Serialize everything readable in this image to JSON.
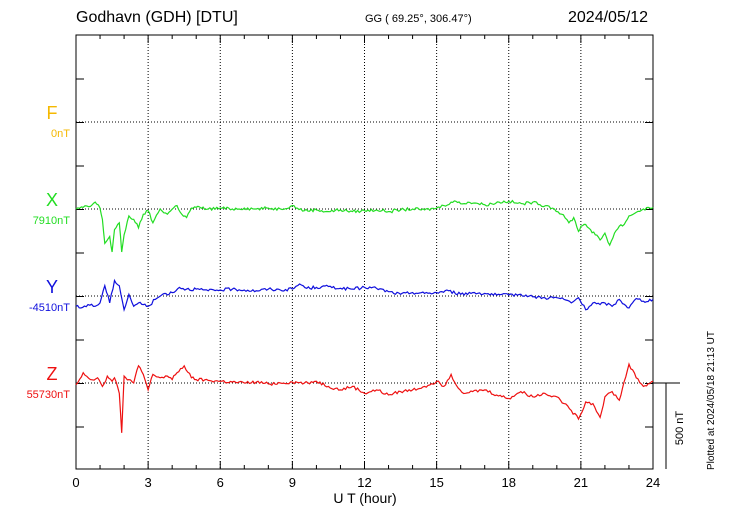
{
  "header": {
    "station": "Godhavn (GDH)  [DTU]",
    "coords": "GG ( 69.25°, 306.47°)",
    "date": "2024/05/12"
  },
  "footer": {
    "plotted": "Plotted at 2024/05/18 21:13 UT"
  },
  "chart_data": {
    "type": "line",
    "xlabel": "U T (hour)",
    "xlim": [
      0,
      24
    ],
    "xticks": [
      "0",
      "3",
      "6",
      "9",
      "12",
      "15",
      "18",
      "21",
      "24"
    ],
    "scale_bar": {
      "label": "500 nT",
      "value_nT": 500
    },
    "grid": true,
    "series": [
      {
        "name": "F",
        "baseline_label": "0nT",
        "color": "#f5b800",
        "offset_slot": 0,
        "x": [],
        "values": []
      },
      {
        "name": "X",
        "baseline_label": "7910nT",
        "color": "#22dd22",
        "offset_slot": 1,
        "x": [
          0,
          0.3,
          0.6,
          0.8,
          1.0,
          1.1,
          1.2,
          1.4,
          1.5,
          1.6,
          1.8,
          1.9,
          2.0,
          2.2,
          2.4,
          2.6,
          2.8,
          3.0,
          3.2,
          3.5,
          3.8,
          4.0,
          4.2,
          4.4,
          4.6,
          4.8,
          5.0,
          5.5,
          6.0,
          6.5,
          7.0,
          7.5,
          8.0,
          8.5,
          9.0,
          9.2,
          9.5,
          10.0,
          10.5,
          11.0,
          11.5,
          12.0,
          12.5,
          13.0,
          13.5,
          14.0,
          14.5,
          15.0,
          15.3,
          15.6,
          15.8,
          16.0,
          16.3,
          16.6,
          17.0,
          17.3,
          17.6,
          18.0,
          18.3,
          18.6,
          19.0,
          19.3,
          19.6,
          19.9,
          20.2,
          20.5,
          20.7,
          20.9,
          21.0,
          21.2,
          21.4,
          21.6,
          21.8,
          22.0,
          22.2,
          22.4,
          22.6,
          22.8,
          23.0,
          23.3,
          23.6,
          24.0
        ],
        "values": [
          0,
          10,
          15,
          40,
          5,
          -60,
          -200,
          -160,
          -250,
          -120,
          -80,
          -250,
          -150,
          -40,
          -60,
          -110,
          -30,
          -10,
          -80,
          0,
          -30,
          0,
          20,
          -30,
          -50,
          5,
          10,
          0,
          5,
          0,
          5,
          0,
          5,
          0,
          20,
          5,
          -10,
          -5,
          -15,
          -5,
          -15,
          -10,
          -5,
          -15,
          -5,
          0,
          -5,
          5,
          20,
          40,
          45,
          30,
          40,
          35,
          25,
          30,
          40,
          45,
          35,
          30,
          40,
          25,
          20,
          0,
          -30,
          -80,
          -50,
          -130,
          -100,
          -90,
          -120,
          -150,
          -180,
          -140,
          -210,
          -140,
          -100,
          -90,
          -40,
          -20,
          0,
          10
        ]
      },
      {
        "name": "Y",
        "baseline_label": "-4510nT",
        "color": "#1010dd",
        "offset_slot": 2,
        "x": [
          0,
          0.2,
          0.5,
          0.8,
          1.0,
          1.2,
          1.4,
          1.6,
          1.8,
          2.0,
          2.2,
          2.4,
          2.6,
          2.8,
          3.0,
          3.3,
          3.6,
          4.0,
          4.3,
          4.6,
          5.0,
          5.5,
          6.0,
          6.5,
          7.0,
          7.5,
          8.0,
          8.5,
          9.0,
          9.3,
          9.6,
          10.0,
          10.5,
          11.0,
          11.5,
          12.0,
          12.5,
          13.0,
          13.5,
          14.0,
          14.5,
          15.0,
          15.5,
          16.0,
          16.5,
          17.0,
          17.5,
          18.0,
          18.5,
          19.0,
          19.5,
          20.0,
          20.3,
          20.6,
          20.9,
          21.2,
          21.5,
          21.8,
          22.0,
          22.3,
          22.6,
          23.0,
          23.3,
          23.6,
          24.0
        ],
        "values": [
          -60,
          -70,
          -50,
          -60,
          -40,
          60,
          -40,
          90,
          60,
          -80,
          10,
          -60,
          -40,
          -50,
          -60,
          -20,
          10,
          20,
          50,
          40,
          40,
          30,
          35,
          40,
          35,
          30,
          40,
          35,
          40,
          70,
          45,
          50,
          55,
          45,
          40,
          50,
          45,
          25,
          10,
          20,
          15,
          20,
          30,
          10,
          20,
          15,
          5,
          5,
          10,
          -5,
          -10,
          -10,
          -20,
          -40,
          -10,
          -80,
          -40,
          -50,
          -40,
          -60,
          -20,
          -70,
          -15,
          -30,
          -20
        ]
      },
      {
        "name": "Z",
        "baseline_label": "55730nT",
        "color": "#ee1111",
        "offset_slot": 3,
        "x": [
          0,
          0.3,
          0.6,
          0.9,
          1.1,
          1.3,
          1.5,
          1.6,
          1.8,
          1.9,
          2.0,
          2.2,
          2.4,
          2.6,
          2.8,
          3.0,
          3.2,
          3.5,
          3.8,
          4.0,
          4.2,
          4.5,
          4.8,
          5.0,
          5.5,
          6.0,
          6.5,
          7.0,
          7.5,
          8.0,
          8.5,
          9.0,
          9.5,
          10.0,
          10.5,
          11.0,
          11.5,
          12.0,
          12.5,
          13.0,
          13.5,
          14.0,
          14.5,
          15.0,
          15.3,
          15.6,
          15.9,
          16.2,
          16.5,
          17.0,
          17.5,
          18.0,
          18.5,
          19.0,
          19.5,
          20.0,
          20.3,
          20.6,
          20.9,
          21.2,
          21.5,
          21.8,
          22.0,
          22.3,
          22.6,
          23.0,
          23.3,
          23.6,
          24.0
        ],
        "values": [
          -10,
          60,
          20,
          30,
          -20,
          40,
          10,
          30,
          -60,
          -290,
          40,
          20,
          0,
          100,
          50,
          -40,
          50,
          30,
          40,
          20,
          60,
          100,
          30,
          20,
          15,
          10,
          5,
          0,
          5,
          -5,
          0,
          5,
          0,
          10,
          -20,
          -40,
          -20,
          -60,
          -40,
          -70,
          -50,
          -40,
          -20,
          10,
          -20,
          50,
          -30,
          -60,
          -50,
          -40,
          -70,
          -90,
          -50,
          -80,
          -60,
          -80,
          -120,
          -160,
          -210,
          -110,
          -120,
          -200,
          -80,
          -50,
          -100,
          110,
          30,
          -20,
          10
        ]
      }
    ]
  }
}
